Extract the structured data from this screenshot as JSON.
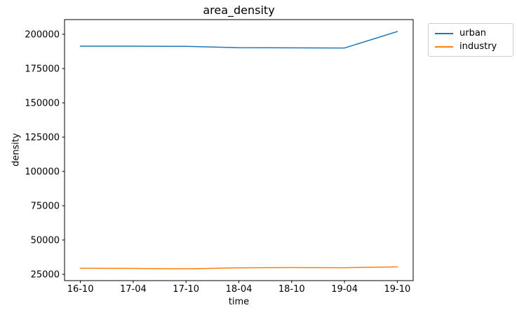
{
  "chart_data": {
    "type": "line",
    "title": "area_density",
    "xlabel": "time",
    "ylabel": "density",
    "categories": [
      "16-10",
      "17-04",
      "17-10",
      "18-04",
      "18-10",
      "19-04",
      "19-10"
    ],
    "series": [
      {
        "name": "urban",
        "color": "#1f77b4",
        "values": [
          191300,
          191300,
          191200,
          190200,
          190100,
          190000,
          202000
        ]
      },
      {
        "name": "industry",
        "color": "#ff7f0e",
        "values": [
          29400,
          29300,
          29000,
          29700,
          29900,
          29800,
          30400
        ]
      }
    ],
    "yticks": [
      25000,
      50000,
      75000,
      100000,
      125000,
      150000,
      175000,
      200000
    ],
    "ylim": [
      20400,
      210700
    ],
    "xlim": [
      -0.3,
      6.3
    ],
    "grid": false,
    "legend_position": "outside-right",
    "axis_color": "#000000",
    "tick_label_color": "#000000",
    "legend_border_color": "#cccccc",
    "background_color": "#ffffff"
  }
}
